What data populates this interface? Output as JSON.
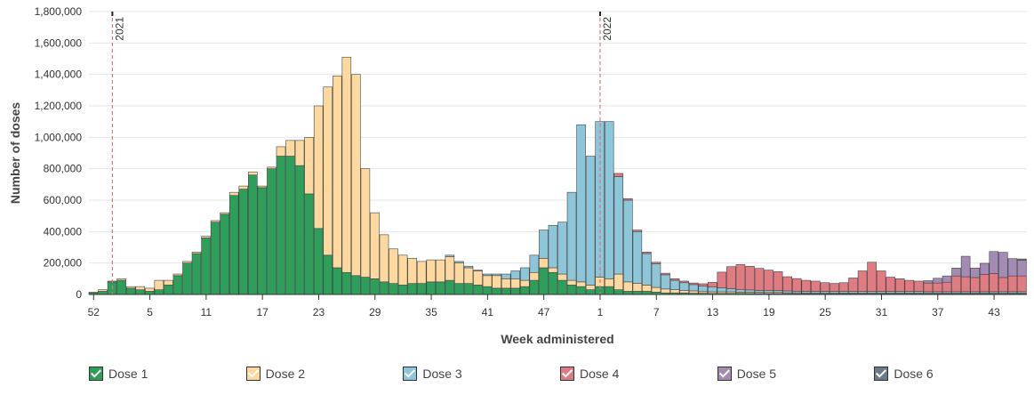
{
  "chart_data": {
    "type": "bar",
    "stacked": true,
    "xlabel": "Week administered",
    "ylabel": "Number of doses",
    "ylim": [
      0,
      1800000
    ],
    "yticks": [
      0,
      200000,
      400000,
      600000,
      800000,
      1000000,
      1200000,
      1400000,
      1600000,
      1800000
    ],
    "ytick_labels": [
      "0",
      "200,000",
      "400,000",
      "600,000",
      "800,000",
      "1,000,000",
      "1,200,000",
      "1,400,000",
      "1,600,000",
      "1,800,000"
    ],
    "xtick_labels": [
      "52",
      "5",
      "11",
      "17",
      "23",
      "29",
      "35",
      "41",
      "47",
      "1",
      "7",
      "13",
      "19",
      "25",
      "31",
      "37",
      "43"
    ],
    "xtick_indices": [
      0,
      6,
      12,
      18,
      24,
      30,
      36,
      42,
      48,
      54,
      60,
      66,
      72,
      78,
      84,
      90,
      96
    ],
    "year_markers": [
      {
        "label": "2021",
        "index": 2.5
      },
      {
        "label": "2022",
        "index": 54.5
      }
    ],
    "grid": true,
    "legend_position": "bottom",
    "series": [
      {
        "name": "Dose 1",
        "color": "#2e9e5b",
        "values": [
          10000,
          20000,
          80000,
          90000,
          40000,
          30000,
          20000,
          30000,
          60000,
          120000,
          200000,
          260000,
          360000,
          460000,
          510000,
          630000,
          670000,
          760000,
          680000,
          800000,
          880000,
          880000,
          820000,
          640000,
          420000,
          250000,
          170000,
          140000,
          120000,
          110000,
          100000,
          80000,
          70000,
          60000,
          70000,
          70000,
          80000,
          80000,
          90000,
          70000,
          70000,
          60000,
          50000,
          40000,
          40000,
          40000,
          50000,
          90000,
          170000,
          140000,
          90000,
          60000,
          50000,
          30000,
          50000,
          50000,
          30000,
          20000,
          20000,
          20000,
          15000,
          10000,
          10000,
          10000,
          8000,
          8000,
          7000,
          7000,
          7000,
          7000,
          6000,
          6000,
          6000,
          6000,
          5000,
          5000,
          5000,
          5000,
          5000,
          5000,
          5000,
          5000,
          5000,
          5000,
          5000,
          5000,
          5000,
          5000,
          5000,
          5000,
          5000,
          5000,
          5000,
          5000,
          5000,
          5000,
          5000,
          5000,
          5000,
          5000
        ]
      },
      {
        "name": "Dose 2",
        "color": "#fdd9a0",
        "values": [
          5000,
          10000,
          5000,
          10000,
          10000,
          20000,
          20000,
          60000,
          30000,
          10000,
          10000,
          10000,
          10000,
          10000,
          10000,
          20000,
          20000,
          20000,
          10000,
          10000,
          60000,
          100000,
          160000,
          360000,
          780000,
          1070000,
          1220000,
          1370000,
          1280000,
          690000,
          420000,
          300000,
          220000,
          190000,
          160000,
          140000,
          140000,
          140000,
          150000,
          130000,
          100000,
          90000,
          70000,
          80000,
          60000,
          60000,
          40000,
          50000,
          60000,
          30000,
          40000,
          30000,
          30000,
          30000,
          60000,
          50000,
          100000,
          60000,
          50000,
          40000,
          30000,
          25000,
          20000,
          15000,
          15000,
          10000,
          10000,
          10000,
          10000,
          8000,
          8000,
          8000,
          7000,
          7000,
          6000,
          6000,
          5000,
          5000,
          5000,
          5000,
          5000,
          5000,
          5000,
          5000,
          5000,
          5000,
          5000,
          5000,
          5000,
          5000,
          5000,
          5000,
          5000,
          5000,
          5000,
          5000,
          5000,
          5000,
          5000,
          5000
        ]
      },
      {
        "name": "Dose 3",
        "color": "#8ec6d9",
        "values": [
          0,
          0,
          0,
          0,
          0,
          0,
          0,
          0,
          0,
          0,
          0,
          0,
          0,
          0,
          0,
          0,
          0,
          0,
          0,
          0,
          0,
          0,
          0,
          0,
          0,
          0,
          0,
          0,
          0,
          0,
          0,
          0,
          0,
          0,
          0,
          0,
          0,
          0,
          10000,
          10000,
          10000,
          5000,
          10000,
          10000,
          30000,
          50000,
          80000,
          110000,
          180000,
          270000,
          330000,
          560000,
          1000000,
          820000,
          990000,
          1000000,
          620000,
          520000,
          330000,
          200000,
          150000,
          90000,
          60000,
          50000,
          40000,
          35000,
          30000,
          25000,
          20000,
          15000,
          15000,
          12000,
          12000,
          12000,
          12000,
          10000,
          10000,
          10000,
          10000,
          10000,
          10000,
          10000,
          10000,
          10000,
          10000,
          10000,
          10000,
          10000,
          10000,
          8000,
          8000,
          8000,
          8000,
          8000,
          8000,
          8000,
          8000,
          8000,
          8000,
          8000
        ]
      },
      {
        "name": "Dose 4",
        "color": "#e07b82",
        "values": [
          0,
          0,
          0,
          0,
          0,
          0,
          0,
          0,
          0,
          0,
          0,
          0,
          0,
          0,
          0,
          0,
          0,
          0,
          0,
          0,
          0,
          0,
          0,
          0,
          0,
          0,
          0,
          0,
          0,
          0,
          0,
          0,
          0,
          0,
          0,
          0,
          0,
          0,
          0,
          0,
          0,
          0,
          0,
          0,
          0,
          0,
          0,
          0,
          0,
          0,
          0,
          0,
          0,
          0,
          0,
          0,
          20000,
          10000,
          10000,
          10000,
          10000,
          10000,
          10000,
          10000,
          10000,
          15000,
          30000,
          100000,
          140000,
          160000,
          150000,
          140000,
          130000,
          120000,
          90000,
          80000,
          70000,
          65000,
          55000,
          50000,
          55000,
          85000,
          130000,
          185000,
          130000,
          90000,
          80000,
          70000,
          65000,
          55000,
          55000,
          60000,
          100000,
          95000,
          90000,
          110000,
          115000,
          90000,
          100000,
          100000
        ]
      },
      {
        "name": "Dose 5",
        "color": "#a38bb4",
        "values": [
          0,
          0,
          0,
          0,
          0,
          0,
          0,
          0,
          0,
          0,
          0,
          0,
          0,
          0,
          0,
          0,
          0,
          0,
          0,
          0,
          0,
          0,
          0,
          0,
          0,
          0,
          0,
          0,
          0,
          0,
          0,
          0,
          0,
          0,
          0,
          0,
          0,
          0,
          0,
          0,
          0,
          0,
          0,
          0,
          0,
          0,
          0,
          0,
          0,
          0,
          0,
          0,
          0,
          0,
          0,
          0,
          0,
          0,
          0,
          0,
          0,
          0,
          0,
          0,
          0,
          0,
          0,
          0,
          0,
          0,
          0,
          0,
          0,
          0,
          0,
          0,
          0,
          0,
          0,
          0,
          0,
          0,
          0,
          0,
          0,
          0,
          0,
          0,
          0,
          15000,
          30000,
          40000,
          50000,
          130000,
          60000,
          70000,
          140000,
          160000,
          110000,
          100000
        ]
      },
      {
        "name": "Dose 6",
        "color": "#6e7a8a",
        "values": [
          0,
          0,
          0,
          0,
          0,
          0,
          0,
          0,
          0,
          0,
          0,
          0,
          0,
          0,
          0,
          0,
          0,
          0,
          0,
          0,
          0,
          0,
          0,
          0,
          0,
          0,
          0,
          0,
          0,
          0,
          0,
          0,
          0,
          0,
          0,
          0,
          0,
          0,
          0,
          0,
          0,
          0,
          0,
          0,
          0,
          0,
          0,
          0,
          0,
          0,
          0,
          0,
          0,
          0,
          0,
          0,
          0,
          0,
          0,
          0,
          0,
          0,
          0,
          0,
          0,
          0,
          0,
          0,
          0,
          0,
          0,
          0,
          0,
          0,
          0,
          0,
          0,
          0,
          0,
          0,
          0,
          0,
          0,
          0,
          0,
          0,
          0,
          0,
          0,
          0,
          0,
          0,
          0,
          0,
          0,
          0,
          0,
          0,
          0,
          8000
        ]
      }
    ]
  },
  "legend": {
    "items": [
      {
        "label": "Dose 1",
        "color": "#2e9e5b"
      },
      {
        "label": "Dose 2",
        "color": "#fdd9a0"
      },
      {
        "label": "Dose 3",
        "color": "#8ec6d9"
      },
      {
        "label": "Dose 4",
        "color": "#e07b82"
      },
      {
        "label": "Dose 5",
        "color": "#a38bb4"
      },
      {
        "label": "Dose 6",
        "color": "#6e7a8a"
      }
    ]
  }
}
